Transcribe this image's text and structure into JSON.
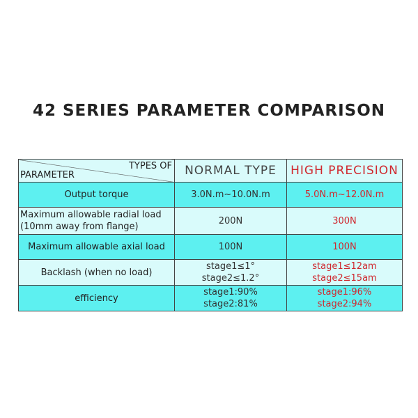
{
  "title": "42 SERIES PARAMETER COMPARISON",
  "table": {
    "corner_top": "TYPES OF",
    "corner_bottom": "PARAMETER",
    "col_normal": "NORMAL TYPE",
    "col_high": "HIGH PRECISION",
    "rows": [
      {
        "param": "Output torque",
        "param2": "",
        "normal": "3.0N.m~10.0N.m",
        "normal2": "",
        "high": "5.0N.m~12.0N.m",
        "high2": ""
      },
      {
        "param": "Maximum allowable radial load",
        "param2": "(10mm away from flange)",
        "normal": "200N",
        "normal2": "",
        "high": "300N",
        "high2": ""
      },
      {
        "param": "Maximum allowable axial load",
        "param2": "",
        "normal": "100N",
        "normal2": "",
        "high": "100N",
        "high2": ""
      },
      {
        "param": "Backlash (when no load)",
        "param2": "",
        "normal": "stage1≤1°",
        "normal2": "stage2≤1.2°",
        "high": "stage1≤12am",
        "high2": "stage2≤15am"
      },
      {
        "param": "efficiency",
        "param2": "",
        "normal": "stage1:90%",
        "normal2": "stage2:81%",
        "high": "stage1:96%",
        "high2": "stage2:94%"
      }
    ]
  },
  "colors": {
    "cyan": "#5df0f0",
    "light": "#d9fbfb",
    "red": "#d0282e"
  }
}
